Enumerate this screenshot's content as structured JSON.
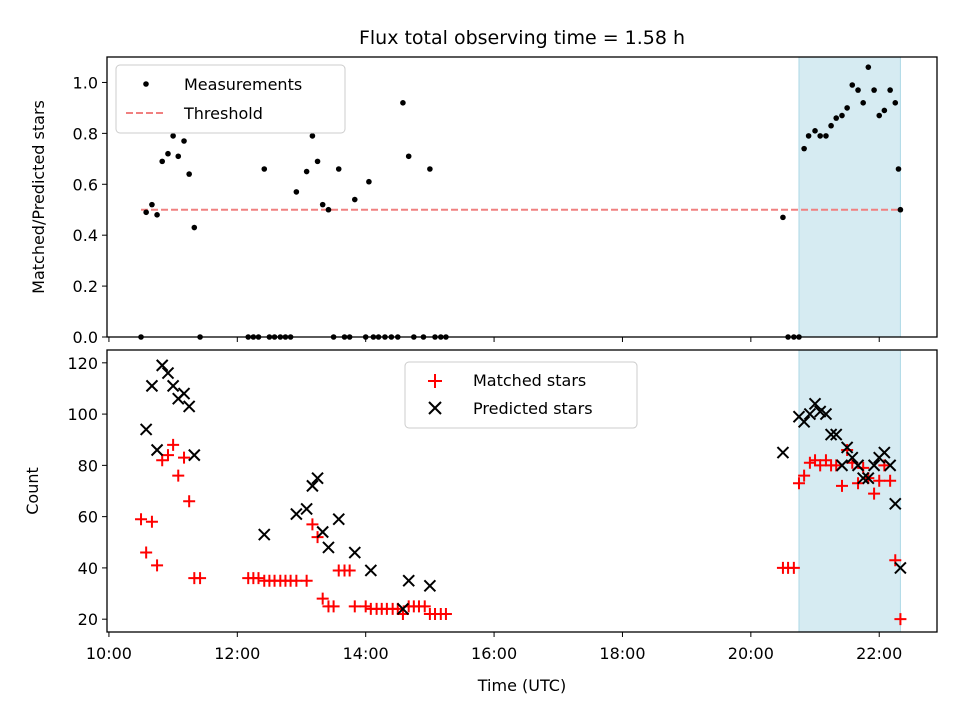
{
  "chart_data": {
    "type": "scatter",
    "title": "Flux total observing time = 1.58 h",
    "xlabel": "Time (UTC)",
    "x_ticks": [
      "10:00",
      "12:00",
      "14:00",
      "16:00",
      "18:00",
      "20:00",
      "22:00"
    ],
    "x_tick_hours": [
      10,
      12,
      14,
      16,
      18,
      20,
      22
    ],
    "xlim_hours": [
      9.97,
      22.9
    ],
    "highlight_span_hours": [
      20.75,
      22.33
    ],
    "colors": {
      "measurements": "#000000",
      "threshold": "#f08080",
      "matched": "#ff0000",
      "predicted": "#000000",
      "span": "#add8e6"
    },
    "top": {
      "ylabel": "Matched/Predicted stars",
      "ylim": [
        0,
        1.1
      ],
      "y_ticks": [
        "0.0",
        "0.2",
        "0.4",
        "0.6",
        "0.8",
        "1.0"
      ],
      "y_tick_values": [
        0,
        0.2,
        0.4,
        0.6,
        0.8,
        1.0
      ],
      "legend": [
        "Measurements",
        "Threshold"
      ],
      "threshold": {
        "value": 0.5,
        "x_range_hours": [
          10.5,
          22.33
        ]
      },
      "measurements": [
        [
          10.5,
          0.0
        ],
        [
          10.58,
          0.49
        ],
        [
          10.67,
          0.52
        ],
        [
          10.75,
          0.48
        ],
        [
          10.83,
          0.69
        ],
        [
          10.92,
          0.72
        ],
        [
          11.0,
          0.79
        ],
        [
          11.08,
          0.71
        ],
        [
          11.17,
          0.77
        ],
        [
          11.25,
          0.64
        ],
        [
          11.33,
          0.43
        ],
        [
          11.42,
          0.0
        ],
        [
          12.17,
          0.0
        ],
        [
          12.25,
          0.0
        ],
        [
          12.33,
          0.0
        ],
        [
          12.42,
          0.66
        ],
        [
          12.5,
          0.0
        ],
        [
          12.58,
          0.0
        ],
        [
          12.67,
          0.0
        ],
        [
          12.75,
          0.0
        ],
        [
          12.83,
          0.0
        ],
        [
          12.92,
          0.57
        ],
        [
          13.08,
          0.65
        ],
        [
          13.17,
          0.79
        ],
        [
          13.25,
          0.69
        ],
        [
          13.33,
          0.52
        ],
        [
          13.42,
          0.5
        ],
        [
          13.5,
          0.0
        ],
        [
          13.58,
          0.66
        ],
        [
          13.67,
          0.0
        ],
        [
          13.75,
          0.0
        ],
        [
          13.83,
          0.54
        ],
        [
          14.0,
          0.0
        ],
        [
          14.05,
          0.61
        ],
        [
          14.12,
          0.0
        ],
        [
          14.2,
          0.0
        ],
        [
          14.3,
          0.0
        ],
        [
          14.4,
          0.0
        ],
        [
          14.5,
          0.0
        ],
        [
          14.58,
          0.92
        ],
        [
          14.67,
          0.71
        ],
        [
          14.75,
          0.0
        ],
        [
          14.9,
          0.0
        ],
        [
          15.0,
          0.66
        ],
        [
          15.08,
          0.0
        ],
        [
          15.17,
          0.0
        ],
        [
          15.25,
          0.0
        ],
        [
          20.5,
          0.47
        ],
        [
          20.58,
          0.0
        ],
        [
          20.67,
          0.0
        ],
        [
          20.75,
          0.0
        ],
        [
          20.83,
          0.74
        ],
        [
          20.9,
          0.79
        ],
        [
          21.0,
          0.81
        ],
        [
          21.08,
          0.79
        ],
        [
          21.17,
          0.79
        ],
        [
          21.25,
          0.83
        ],
        [
          21.33,
          0.86
        ],
        [
          21.42,
          0.87
        ],
        [
          21.5,
          0.9
        ],
        [
          21.58,
          0.99
        ],
        [
          21.67,
          0.97
        ],
        [
          21.75,
          0.92
        ],
        [
          21.83,
          1.06
        ],
        [
          21.92,
          0.97
        ],
        [
          22.0,
          0.87
        ],
        [
          22.08,
          0.89
        ],
        [
          22.17,
          0.97
        ],
        [
          22.25,
          0.92
        ],
        [
          22.3,
          0.66
        ],
        [
          22.33,
          0.5
        ]
      ]
    },
    "bottom": {
      "ylabel": "Count",
      "ylim": [
        15,
        125
      ],
      "y_ticks": [
        "20",
        "40",
        "60",
        "80",
        "100",
        "120"
      ],
      "y_tick_values": [
        20,
        40,
        60,
        80,
        100,
        120
      ],
      "legend": [
        "Matched stars",
        "Predicted stars"
      ],
      "matched": [
        [
          10.5,
          59
        ],
        [
          10.58,
          46
        ],
        [
          10.67,
          58
        ],
        [
          10.75,
          41
        ],
        [
          10.83,
          82
        ],
        [
          10.92,
          84
        ],
        [
          11.0,
          88
        ],
        [
          11.08,
          76
        ],
        [
          11.17,
          83
        ],
        [
          11.25,
          66
        ],
        [
          11.33,
          36
        ],
        [
          11.42,
          36
        ],
        [
          12.17,
          36
        ],
        [
          12.25,
          36
        ],
        [
          12.33,
          36
        ],
        [
          12.42,
          35
        ],
        [
          12.5,
          35
        ],
        [
          12.58,
          35
        ],
        [
          12.67,
          35
        ],
        [
          12.75,
          35
        ],
        [
          12.83,
          35
        ],
        [
          12.92,
          35
        ],
        [
          13.08,
          35
        ],
        [
          13.17,
          57
        ],
        [
          13.25,
          52
        ],
        [
          13.33,
          28
        ],
        [
          13.42,
          25
        ],
        [
          13.5,
          25
        ],
        [
          13.58,
          39
        ],
        [
          13.67,
          39
        ],
        [
          13.75,
          39
        ],
        [
          13.83,
          25
        ],
        [
          14.0,
          25
        ],
        [
          14.08,
          24
        ],
        [
          14.17,
          24
        ],
        [
          14.25,
          24
        ],
        [
          14.33,
          24
        ],
        [
          14.42,
          24
        ],
        [
          14.5,
          24
        ],
        [
          14.58,
          22
        ],
        [
          14.67,
          25
        ],
        [
          14.75,
          25
        ],
        [
          14.83,
          25
        ],
        [
          14.92,
          25
        ],
        [
          15.0,
          22
        ],
        [
          15.08,
          22
        ],
        [
          15.17,
          22
        ],
        [
          15.25,
          22
        ],
        [
          20.5,
          40
        ],
        [
          20.58,
          40
        ],
        [
          20.67,
          40
        ],
        [
          20.75,
          73
        ],
        [
          20.83,
          76
        ],
        [
          20.92,
          81
        ],
        [
          21.0,
          82
        ],
        [
          21.08,
          80
        ],
        [
          21.17,
          82
        ],
        [
          21.25,
          80
        ],
        [
          21.33,
          80
        ],
        [
          21.42,
          72
        ],
        [
          21.5,
          86
        ],
        [
          21.58,
          81
        ],
        [
          21.67,
          73
        ],
        [
          21.75,
          79
        ],
        [
          21.83,
          75
        ],
        [
          21.92,
          69
        ],
        [
          22.0,
          74
        ],
        [
          22.08,
          80
        ],
        [
          22.17,
          74
        ],
        [
          22.25,
          43
        ],
        [
          22.33,
          20
        ]
      ],
      "predicted": [
        [
          10.58,
          94
        ],
        [
          10.67,
          111
        ],
        [
          10.75,
          86
        ],
        [
          10.83,
          119
        ],
        [
          10.92,
          116
        ],
        [
          11.0,
          111
        ],
        [
          11.08,
          106
        ],
        [
          11.17,
          108
        ],
        [
          11.25,
          103
        ],
        [
          11.33,
          84
        ],
        [
          12.42,
          53
        ],
        [
          12.92,
          61
        ],
        [
          13.08,
          63
        ],
        [
          13.17,
          72
        ],
        [
          13.25,
          75
        ],
        [
          13.33,
          54
        ],
        [
          13.42,
          48
        ],
        [
          13.58,
          59
        ],
        [
          13.83,
          46
        ],
        [
          14.08,
          39
        ],
        [
          14.58,
          24
        ],
        [
          14.67,
          35
        ],
        [
          15.0,
          33
        ],
        [
          20.5,
          85
        ],
        [
          20.75,
          99
        ],
        [
          20.83,
          97
        ],
        [
          20.92,
          100
        ],
        [
          21.0,
          104
        ],
        [
          21.08,
          101
        ],
        [
          21.17,
          100
        ],
        [
          21.25,
          92
        ],
        [
          21.33,
          92
        ],
        [
          21.42,
          80
        ],
        [
          21.5,
          87
        ],
        [
          21.58,
          83
        ],
        [
          21.67,
          80
        ],
        [
          21.75,
          75
        ],
        [
          21.83,
          75
        ],
        [
          21.92,
          80
        ],
        [
          22.0,
          83
        ],
        [
          22.08,
          85
        ],
        [
          22.17,
          80
        ],
        [
          22.25,
          65
        ],
        [
          22.33,
          40
        ]
      ]
    }
  }
}
